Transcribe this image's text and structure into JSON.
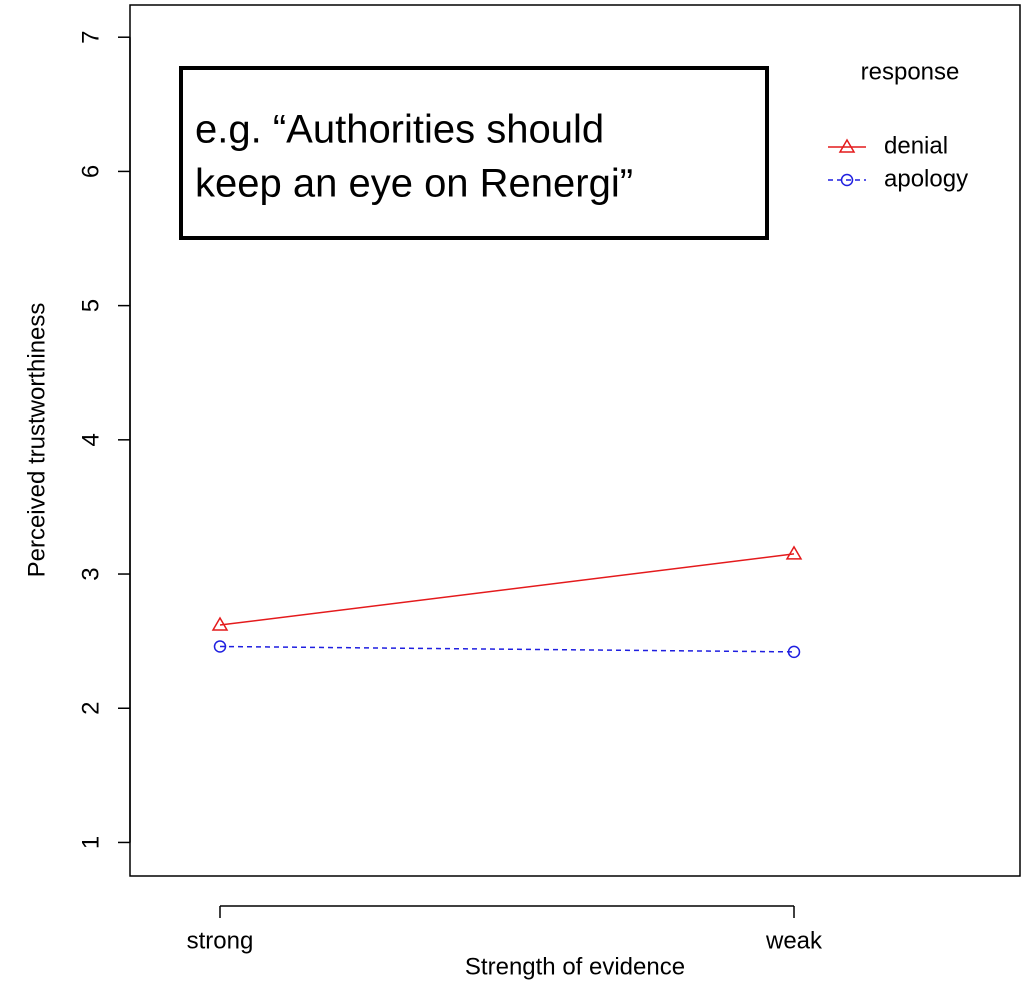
{
  "chart_data": {
    "type": "line",
    "categories": [
      "strong",
      "weak"
    ],
    "series": [
      {
        "name": "denial",
        "color": "#e41a1c",
        "marker": "triangle",
        "linestyle": "solid",
        "values": [
          2.62,
          3.15
        ]
      },
      {
        "name": "apology",
        "color": "#1f1fe0",
        "marker": "circle",
        "linestyle": "dashed",
        "values": [
          2.46,
          2.42
        ]
      }
    ],
    "xlabel": "Strength of evidence",
    "ylabel": "Perceived trustworthiness",
    "legend_title": "response",
    "legend": "top-right",
    "annotation": [
      "e.g. “Authorities should",
      "keep an eye on Renergi”"
    ],
    "ylim": [
      0.75,
      7.24
    ],
    "yticks": [
      1,
      2,
      3,
      4,
      5,
      6,
      7
    ]
  }
}
